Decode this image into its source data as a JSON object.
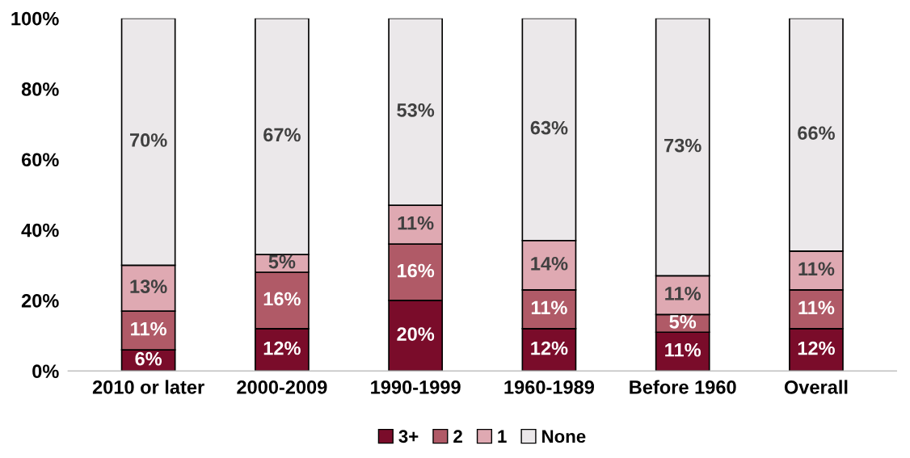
{
  "chart_data": {
    "type": "bar",
    "stacked": true,
    "categories": [
      "2010 or later",
      "2000-2009",
      "1990-1999",
      "1960-1989",
      "Before 1960",
      "Overall"
    ],
    "series": [
      {
        "name": "3+",
        "color": "#7a0c2a",
        "values": [
          6,
          12,
          20,
          12,
          11,
          12
        ],
        "value_labels": [
          "6%",
          "12%",
          "20%",
          "12%",
          "11%",
          "12%"
        ]
      },
      {
        "name": "2",
        "color": "#b05a67",
        "values": [
          11,
          16,
          16,
          11,
          5,
          11
        ],
        "value_labels": [
          "11%",
          "16%",
          "16%",
          "11%",
          "5%",
          "11%"
        ]
      },
      {
        "name": "1",
        "color": "#dfa9b2",
        "values": [
          13,
          5,
          11,
          14,
          11,
          11
        ],
        "value_labels": [
          "13%",
          "5%",
          "11%",
          "14%",
          "11%",
          "11%"
        ]
      },
      {
        "name": "None",
        "color": "#ebe8ea",
        "values": [
          70,
          67,
          53,
          63,
          73,
          66
        ],
        "value_labels": [
          "70%",
          "67%",
          "53%",
          "63%",
          "73%",
          "66%"
        ]
      }
    ],
    "ylim": [
      0,
      100
    ],
    "yticks": [
      {
        "value": 0,
        "label": "0%"
      },
      {
        "value": 20,
        "label": "20%"
      },
      {
        "value": 40,
        "label": "40%"
      },
      {
        "value": 60,
        "label": "60%"
      },
      {
        "value": 80,
        "label": "80%"
      },
      {
        "value": 100,
        "label": "100%"
      }
    ],
    "grid": false,
    "legend": "bottom"
  }
}
